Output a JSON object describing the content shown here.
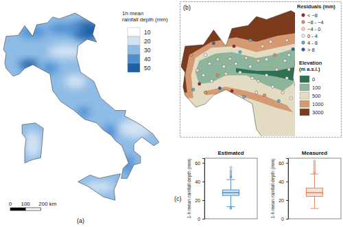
{
  "chart_data": [
    {
      "type": "box",
      "title": "Estimated",
      "y_label": "1-h mean rainfall depth (mm)",
      "ylim": [
        0,
        65
      ],
      "yticks": [
        0,
        20,
        40,
        60
      ],
      "tick_labels": "y",
      "color": "#2a7ab8",
      "stats": {
        "min": 13,
        "q1": 25,
        "median": 28,
        "q3": 31,
        "max": 42
      },
      "outliers": [
        11,
        12,
        44,
        45,
        46,
        48,
        50,
        52,
        55
      ]
    },
    {
      "type": "box",
      "title": "Measured",
      "y_label": "1-h mean rainfall depth (mm)",
      "ylim": [
        0,
        65
      ],
      "yticks": [
        0,
        20,
        40,
        60
      ],
      "tick_labels": "y",
      "color": "#d9703a",
      "stats": {
        "min": 11,
        "q1": 24,
        "median": 28,
        "q3": 33,
        "max": 48
      },
      "outliers": [
        49,
        50,
        52,
        54,
        56,
        58,
        60,
        62
      ]
    }
  ],
  "maps": {
    "a": {
      "label": "(a)",
      "legend_title": [
        "1h mean",
        "rainfall depth (mm)"
      ],
      "legend_values": [
        10,
        20,
        30,
        40,
        50
      ],
      "colors": [
        "#ffffff",
        "#d3e3f3",
        "#8fbce6",
        "#4f8fd0",
        "#1f5fa8"
      ],
      "scale_bar": {
        "ticks": [
          0,
          100,
          {
            "value": 200,
            "label": "200 km"
          }
        ]
      }
    },
    "b": {
      "label": "(b)",
      "residual_title": "Residuals (mm)",
      "residual_breaks": [
        -8,
        -4,
        0,
        4,
        8
      ],
      "residual_classes": [
        "< −8",
        "−8 - −4",
        "−4 - 0",
        "0 - 4",
        "4 - 8",
        "> 8"
      ],
      "residual_colors": [
        "#b2182b",
        "#ef8a62",
        "#fddbc7",
        "#e8f1f8",
        "#67a9cf",
        "#2166ac"
      ],
      "elevation_title": [
        "Elevation",
        "(m a.s.l.)"
      ],
      "elevation_values": [
        0,
        100,
        500,
        1000,
        3000
      ],
      "elevation_colors": [
        "#2e7052",
        "#8db59c",
        "#e3dcc3",
        "#d49a74",
        "#7b3b1c"
      ],
      "stations": [
        {
          "lon": 7.6,
          "lat": 45.07,
          "residual": -2
        },
        {
          "lon": 7.9,
          "lat": 44.9,
          "residual": 1
        },
        {
          "lon": 8.2,
          "lat": 45.3,
          "residual": 3
        },
        {
          "lon": 8.6,
          "lat": 45.45,
          "residual": -1
        },
        {
          "lon": 8.9,
          "lat": 45.2,
          "residual": 2
        },
        {
          "lon": 9.2,
          "lat": 45.47,
          "residual": -3
        },
        {
          "lon": 9.5,
          "lat": 45.3,
          "residual": 1
        },
        {
          "lon": 9.7,
          "lat": 45.7,
          "residual": 6
        },
        {
          "lon": 10.0,
          "lat": 45.5,
          "residual": -1
        },
        {
          "lon": 10.2,
          "lat": 45.2,
          "residual": 0.5
        },
        {
          "lon": 10.6,
          "lat": 45.4,
          "residual": -2
        },
        {
          "lon": 11.0,
          "lat": 45.45,
          "residual": 2
        },
        {
          "lon": 11.4,
          "lat": 45.6,
          "residual": -5
        },
        {
          "lon": 11.9,
          "lat": 45.4,
          "residual": 1
        },
        {
          "lon": 12.1,
          "lat": 45.6,
          "residual": 3
        },
        {
          "lon": 12.3,
          "lat": 45.8,
          "residual": 9
        },
        {
          "lon": 11.5,
          "lat": 45.1,
          "residual": -1
        },
        {
          "lon": 11.0,
          "lat": 44.9,
          "residual": 0.5
        },
        {
          "lon": 10.6,
          "lat": 44.7,
          "residual": -2
        },
        {
          "lon": 10.3,
          "lat": 44.8,
          "residual": 1
        },
        {
          "lon": 9.7,
          "lat": 45.0,
          "residual": 2
        },
        {
          "lon": 9.0,
          "lat": 44.95,
          "residual": -1
        },
        {
          "lon": 8.6,
          "lat": 44.9,
          "residual": -4.5
        },
        {
          "lon": 8.3,
          "lat": 44.7,
          "residual": 3
        },
        {
          "lon": 7.7,
          "lat": 44.6,
          "residual": -9
        },
        {
          "lon": 7.4,
          "lat": 44.4,
          "residual": 5
        },
        {
          "lon": 8.0,
          "lat": 44.3,
          "residual": -6
        },
        {
          "lon": 8.7,
          "lat": 44.45,
          "residual": 10
        },
        {
          "lon": 9.3,
          "lat": 44.35,
          "residual": -10
        },
        {
          "lon": 9.9,
          "lat": 44.15,
          "residual": 6
        },
        {
          "lon": 10.5,
          "lat": 44.3,
          "residual": -3
        },
        {
          "lon": 11.3,
          "lat": 44.5,
          "residual": 1
        },
        {
          "lon": 11.8,
          "lat": 44.3,
          "residual": -2
        },
        {
          "lon": 12.2,
          "lat": 44.1,
          "residual": 2
        },
        {
          "lon": 11.6,
          "lat": 44.0,
          "residual": 5
        },
        {
          "lon": 10.9,
          "lat": 44.2,
          "residual": -7
        },
        {
          "lon": 12.0,
          "lat": 44.8,
          "residual": 0.5
        },
        {
          "lon": 12.1,
          "lat": 45.1,
          "residual": -1
        },
        {
          "lon": 9.4,
          "lat": 45.9,
          "residual": -8.5
        },
        {
          "lon": 10.2,
          "lat": 46.1,
          "residual": 4.5
        },
        {
          "lon": 8.4,
          "lat": 46.0,
          "residual": 9
        },
        {
          "lon": 7.3,
          "lat": 45.6,
          "residual": -5
        },
        {
          "lon": 11.2,
          "lat": 46.05,
          "residual": 2
        },
        {
          "lon": 12.0,
          "lat": 46.1,
          "residual": -2
        },
        {
          "lon": 8.0,
          "lat": 45.6,
          "residual": 1
        },
        {
          "lon": 10.8,
          "lat": 45.9,
          "residual": -1
        }
      ]
    },
    "c": {
      "label": "(c)"
    }
  }
}
